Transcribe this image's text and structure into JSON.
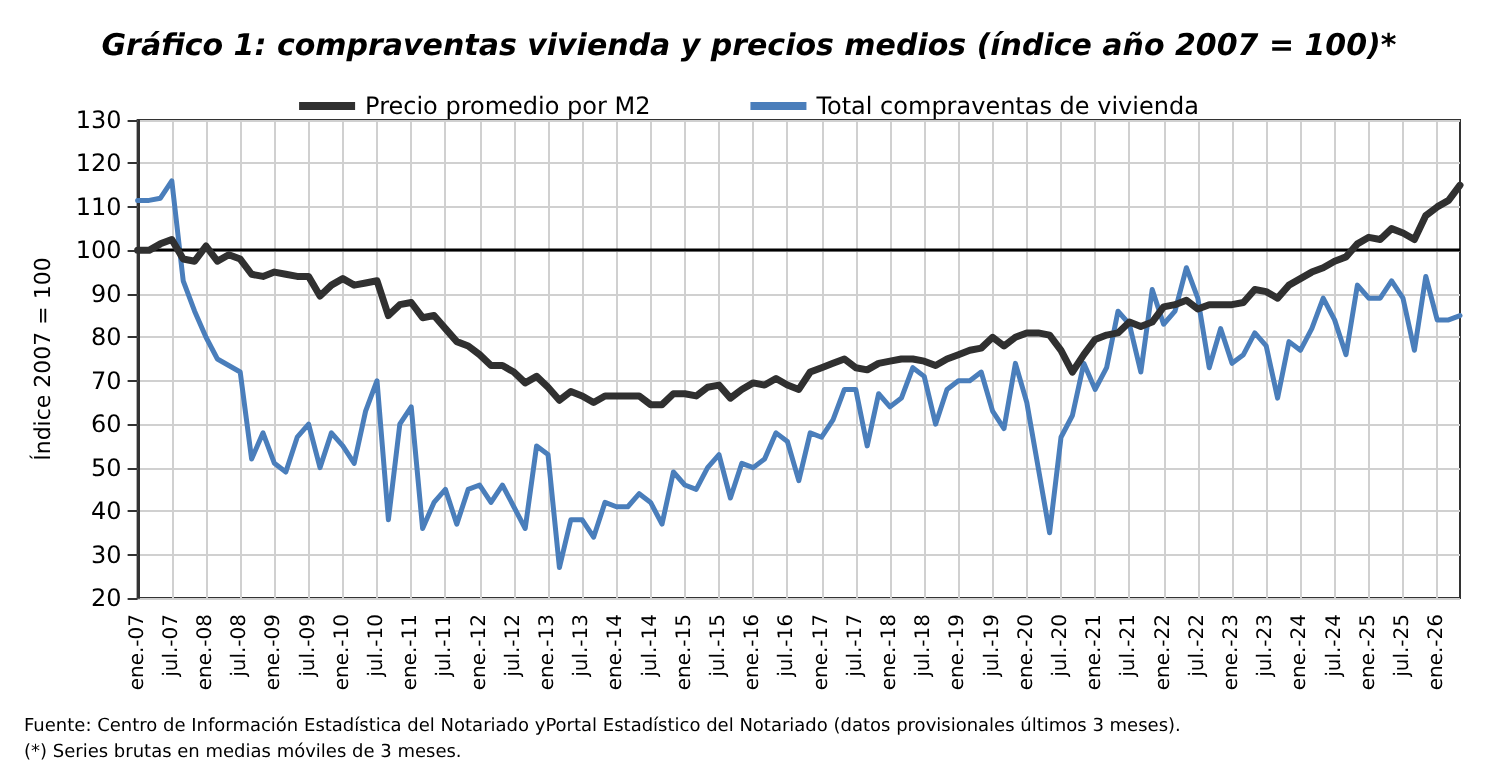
{
  "chart_data": {
    "type": "line",
    "title": "Gráfico 1: compraventas vivienda y precios medios (índice año 2007 = 100)*",
    "ylabel": "Índice 2007 = 100",
    "categories": [
      "ene.-07",
      null,
      null,
      "jul.-07",
      null,
      null,
      "ene.-08",
      null,
      null,
      "jul.-08",
      null,
      null,
      "ene.-09",
      null,
      null,
      "jul.-09",
      null,
      null,
      "ene.-10",
      null,
      null,
      "jul.-10",
      null,
      null,
      "ene.-11",
      null,
      null,
      "jul.-11",
      null,
      null,
      "ene.-12",
      null,
      null,
      "jul.-12",
      null,
      null,
      "ene.-13",
      null,
      null,
      "jul.-13",
      null,
      null,
      "ene.-14",
      null,
      null,
      "jul.-14",
      null,
      null,
      "ene.-15",
      null,
      null,
      "jul.-15",
      null,
      null,
      "ene.-16",
      null,
      null,
      "jul.-16",
      null,
      null,
      "ene.-17",
      null,
      null,
      "jul.-17",
      null,
      null,
      "ene.-18",
      null,
      null,
      "jul.-18",
      null,
      null,
      "ene.-19",
      null,
      null,
      "jul.-19",
      null,
      null,
      "ene.-20",
      null,
      null,
      "jul.-20",
      null,
      null,
      "ene.-21",
      null,
      null,
      "jul.-21",
      null,
      null,
      "ene.-22",
      null,
      null,
      "jul.-22",
      null,
      null,
      "ene.-23",
      null,
      null,
      "jul.-23",
      null,
      null,
      "ene.-24",
      null,
      null,
      "jul.-24",
      null,
      null,
      "ene.-25",
      null,
      null,
      "jul.-25",
      null,
      null,
      "ene.-26",
      null,
      null
    ],
    "series": [
      {
        "name": "Precio promedio por M2",
        "color": "#303030",
        "values": [
          100,
          100,
          101.5,
          102.5,
          98,
          97.5,
          101,
          97.5,
          99,
          98,
          94.5,
          94,
          95,
          94.5,
          94,
          94,
          89.5,
          92,
          93.5,
          92,
          92.5,
          93,
          85,
          87.5,
          88,
          84.5,
          85,
          82,
          79,
          78,
          76,
          73.5,
          73.5,
          72,
          69.5,
          71,
          68.5,
          65.5,
          67.5,
          66.5,
          65,
          66.5,
          66.5,
          66.5,
          66.5,
          64.5,
          64.5,
          67,
          67,
          66.5,
          68.5,
          69,
          66,
          68,
          69.5,
          69,
          70.5,
          69,
          68,
          72,
          73,
          74,
          75,
          73,
          72.5,
          74,
          74.5,
          75,
          75,
          74.5,
          73.5,
          75,
          76,
          77,
          77.5,
          80,
          78,
          80,
          81,
          81,
          80.5,
          77,
          72,
          76,
          79.5,
          80.5,
          81,
          83.5,
          82.5,
          83.5,
          87,
          87.5,
          88.5,
          86.5,
          87.5,
          87.5,
          87.5,
          88,
          91,
          90.5,
          89,
          92,
          93.5,
          95,
          96,
          97.5,
          98.5,
          101.5,
          103,
          102.5,
          105,
          104,
          102.5,
          108,
          110,
          111.5,
          115
        ]
      },
      {
        "name": "Total compraventas de vivienda",
        "color": "#4a7ebb",
        "values": [
          111.5,
          111.5,
          112,
          116,
          93,
          86,
          80,
          75,
          73.5,
          72,
          52,
          58,
          51,
          49,
          57,
          60,
          50,
          58,
          55,
          51,
          63,
          70,
          38,
          60,
          64,
          36,
          42,
          45,
          37,
          45,
          46,
          42,
          46,
          41,
          36,
          55,
          53,
          27,
          38,
          38,
          34,
          42,
          41,
          41,
          44,
          42,
          37,
          49,
          46,
          45,
          50,
          53,
          43,
          51,
          50,
          52,
          58,
          56,
          47,
          58,
          57,
          61,
          68,
          68,
          55,
          67,
          64,
          66,
          73,
          71,
          60,
          68,
          70,
          70,
          72,
          63,
          59,
          74,
          65,
          50,
          35,
          57,
          62,
          74,
          68,
          73,
          86,
          83,
          72,
          91,
          83,
          86,
          96,
          89,
          73,
          82,
          74,
          76,
          81,
          78,
          66,
          79,
          77,
          82,
          89,
          84,
          76,
          92,
          89,
          89,
          93,
          89,
          77,
          94,
          84,
          84,
          85
        ]
      }
    ],
    "ylim": [
      20,
      130
    ],
    "yticks": [
      20,
      30,
      40,
      50,
      60,
      70,
      80,
      90,
      100,
      110,
      120,
      130
    ],
    "grid": true,
    "legend": "top",
    "marker": "none",
    "line_style": "solid",
    "ref_lines": [
      {
        "axis": "y",
        "value": 100,
        "color": "#000000"
      }
    ],
    "annotations": [
      "Fuente: Centro de Información Estadística del Notariado yPortal Estadístico del Notariado (datos provisionales últimos 3 meses).",
      "(*) Series brutas en medias móviles de 3 meses."
    ]
  }
}
